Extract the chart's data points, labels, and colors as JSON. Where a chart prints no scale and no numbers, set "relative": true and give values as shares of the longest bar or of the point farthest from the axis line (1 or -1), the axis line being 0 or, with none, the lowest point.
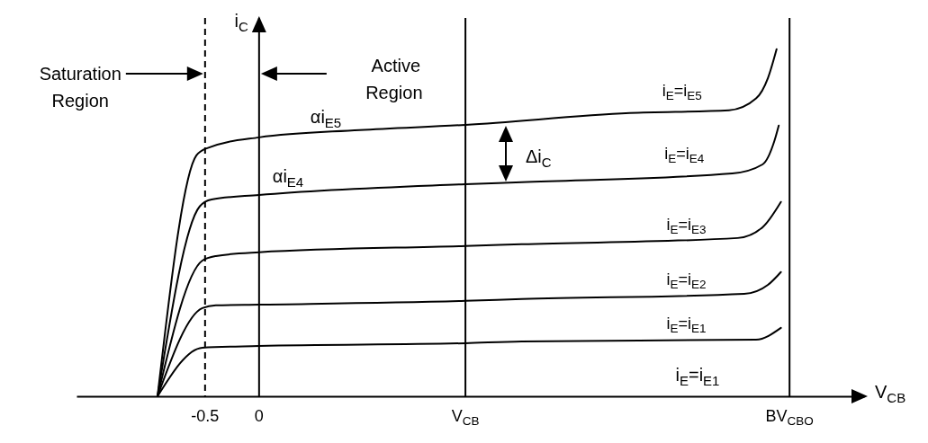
{
  "chart_data": {
    "type": "line",
    "relative": true,
    "xlabel": "V$_{CB}$",
    "ylabel": "i$_{C}$",
    "xlim": [
      -1.69,
      5.6
    ],
    "xticks": [
      -0.5,
      0,
      {
        "value": 1.91,
        "label": "V$_{CB}$"
      },
      {
        "value": 4.91,
        "label": "BV$_{CBO}$"
      }
    ],
    "grid": false,
    "line_style": "solid",
    "series": [
      {
        "name": "i$_{E}$=i$_{E5}$",
        "color": "#000000",
        "x": [
          -0.94,
          -0.58,
          -0.48,
          0,
          0.93,
          1.91,
          3.43,
          4.35,
          4.6,
          4.71,
          4.79
        ],
        "values": [
          0,
          0.694,
          0.715,
          0.746,
          0.767,
          0.782,
          0.816,
          0.824,
          0.858,
          0.917,
          1
        ]
      },
      {
        "name": "i$_{E}$=i$_{E4}$",
        "color": "#000000",
        "x": [
          -0.94,
          -0.55,
          -0.44,
          0,
          1.91,
          2.43,
          4.38,
          4.66,
          4.77,
          4.81
        ],
        "values": [
          0,
          0.547,
          0.567,
          0.58,
          0.611,
          0.617,
          0.642,
          0.668,
          0.736,
          0.78
        ]
      },
      {
        "name": "i$_{E}$=i$_{E3}$",
        "color": "#000000",
        "x": [
          -0.94,
          -0.525,
          -0.4,
          0,
          1.91,
          2.43,
          4.43,
          4.66,
          4.83
        ],
        "values": [
          0,
          0.391,
          0.404,
          0.415,
          0.433,
          0.438,
          0.456,
          0.487,
          0.56
        ]
      },
      {
        "name": "i$_{E}$=i$_{E2}$",
        "color": "#000000",
        "x": [
          -0.94,
          -0.525,
          -0.4,
          0,
          1.91,
          2.43,
          4.49,
          4.71,
          4.83
        ],
        "values": [
          0,
          0.254,
          0.262,
          0.264,
          0.275,
          0.28,
          0.295,
          0.321,
          0.358
        ]
      },
      {
        "name": "i$_{E}$=i$_{E1}$",
        "color": "#000000",
        "x": [
          -0.94,
          -0.525,
          0,
          1.91,
          2.43,
          4.6,
          4.83
        ],
        "values": [
          0,
          0.14,
          0.145,
          0.153,
          0.158,
          0.163,
          0.197
        ]
      }
    ],
    "ref_lines": [
      {
        "axis": "x",
        "value": -0.5,
        "line_style": "dashed"
      },
      {
        "axis": "x",
        "value": 0
      },
      {
        "axis": "x",
        "value": 1.91
      },
      {
        "axis": "x",
        "value": 4.91
      }
    ],
    "annotations": [
      "Saturation Region",
      "Active Region",
      "αi$_{E5}$",
      "αi$_{E4}$",
      "Δi$_{C}$",
      "i$_{E}$=i$_{E1}$"
    ]
  }
}
